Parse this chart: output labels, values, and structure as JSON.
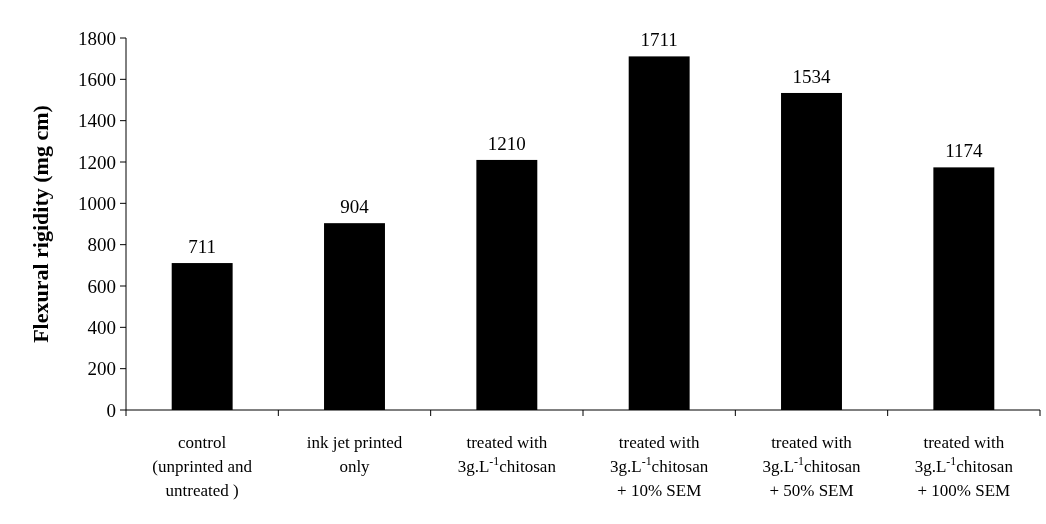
{
  "chart_data": {
    "type": "bar",
    "ylabel": "Flexural rigidity (mg cm)",
    "categories": [
      "control\n(unprinted and\nuntreated )",
      "ink jet printed\nonly",
      "treated with\n3g.L$^{-1}$chitosan",
      "treated with\n3g.L$^{-1}$chitosan\n+ 10% SEM",
      "treated with\n3g.L$^{-1}$chitosan\n+ 50% SEM",
      "treated with\n3g.L$^{-1}$chitosan\n+ 100% SEM"
    ],
    "values": [
      711,
      904,
      1210,
      1711,
      1534,
      1174
    ],
    "color": "#000000",
    "ylim": [
      0,
      1800
    ],
    "yticks": [
      0,
      200,
      400,
      600,
      800,
      1000,
      1200,
      1400,
      1600,
      1800
    ],
    "data_labels": true,
    "grid": false
  }
}
